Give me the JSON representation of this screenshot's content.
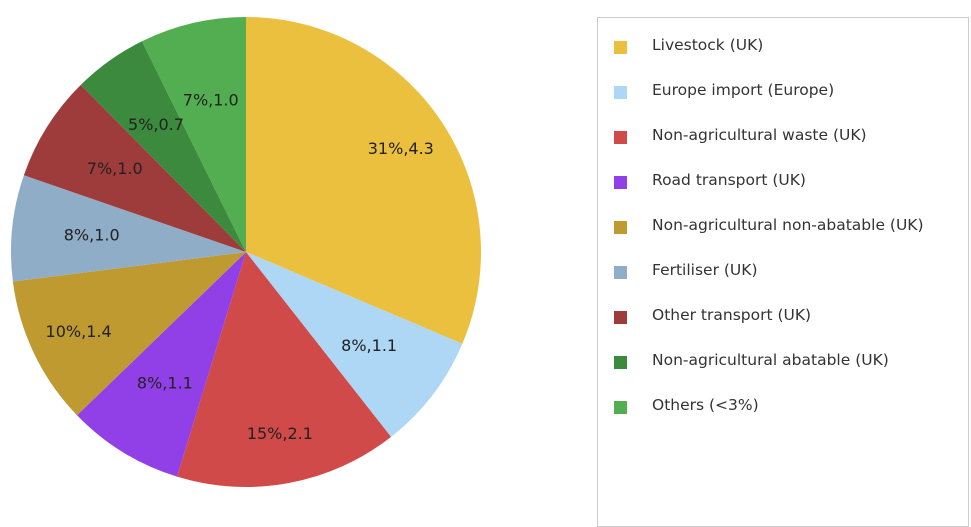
{
  "chart_data": {
    "type": "pie",
    "categories": [
      "Livestock (UK)",
      "Europe import (Europe)",
      "Non-agricultural waste (UK)",
      "Road transport (UK)",
      "Non-agricultural non-abatable (UK)",
      "Fertiliser (UK)",
      "Other transport (UK)",
      "Non-agricultural abatable (UK)",
      "Others (<3%)"
    ],
    "values": [
      4.3,
      1.1,
      2.1,
      1.1,
      1.4,
      1.0,
      1.0,
      0.7,
      1.0
    ],
    "value_labels": [
      "31%,4.3",
      "8%,1.1",
      "15%,2.1",
      "8%,1.1",
      "10%,1.4",
      "8%,1.0",
      "7%,1.0",
      "5%,0.7",
      "7%,1.0"
    ],
    "colors": [
      "#ecc03f",
      "#aed6f5",
      "#cf4a48",
      "#9140e8",
      "#bf9a30",
      "#8fadc7",
      "#9e3b3b",
      "#3b8a3e",
      "#52ae50"
    ],
    "legend": "right"
  }
}
